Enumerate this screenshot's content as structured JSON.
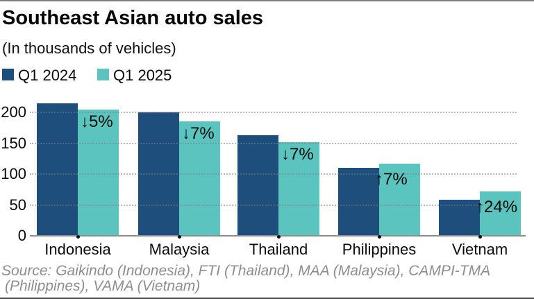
{
  "header": {
    "title": "Southeast Asian auto sales",
    "subtitle": "(In thousands of vehicles)"
  },
  "legend": {
    "items": [
      {
        "label": "Q1 2024",
        "color": "#1d4e7c"
      },
      {
        "label": "Q1 2025",
        "color": "#5cc4bf"
      }
    ]
  },
  "chart_data": {
    "type": "bar",
    "title": "Southeast Asian auto sales",
    "subtitle": "(In thousands of vehicles)",
    "unit": "thousands of vehicles",
    "categories": [
      "Indonesia",
      "Malaysia",
      "Thailand",
      "Philippines",
      "Vietnam"
    ],
    "series": [
      {
        "name": "Q1 2024",
        "color": "#1d4e7c",
        "values": [
          215,
          200,
          163,
          110,
          58
        ]
      },
      {
        "name": "Q1 2025",
        "color": "#5cc4bf",
        "values": [
          205,
          185,
          152,
          117,
          72
        ]
      }
    ],
    "annotations": [
      {
        "category": "Indonesia",
        "text": "↓5%",
        "direction": "down"
      },
      {
        "category": "Malaysia",
        "text": "↓7%",
        "direction": "down"
      },
      {
        "category": "Thailand",
        "text": "↓7%",
        "direction": "down"
      },
      {
        "category": "Philippines",
        "text": "↑7%",
        "direction": "up"
      },
      {
        "category": "Vietnam",
        "text": "↑24%",
        "direction": "up"
      }
    ],
    "y_ticks": [
      0,
      50,
      100,
      150,
      200
    ],
    "ylim": [
      0,
      220
    ],
    "grid": "horizontal-dotted",
    "grid_color": "#9c9c9c",
    "axis_color": "#8c8c8c",
    "legend_position": "top-left"
  },
  "source": {
    "line1": "Source: Gaikindo (Indonesia), FTI (Thailand), MAA (Malaysia), CAMPI-TMA",
    "line2": "(Philippines), VAMA (Vietnam)"
  }
}
